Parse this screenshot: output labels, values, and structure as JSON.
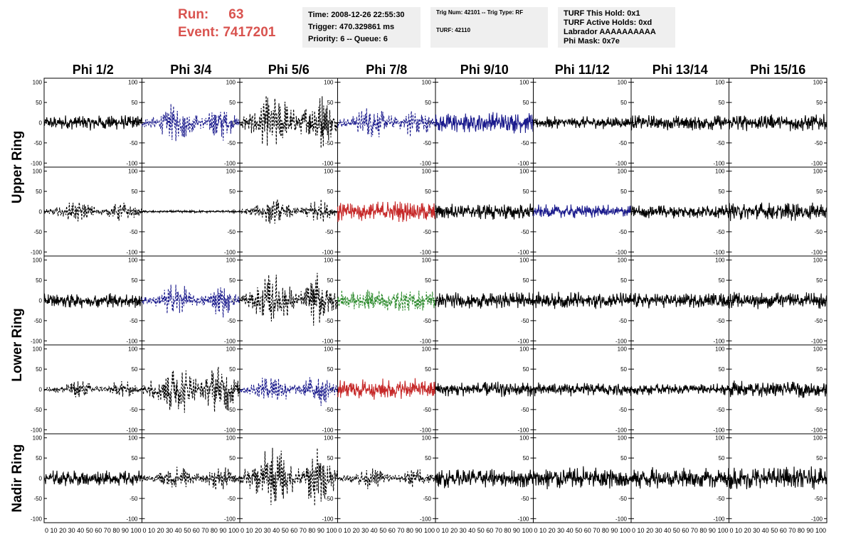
{
  "header": {
    "run_label": "Run:",
    "run_value": "63",
    "event_label": "Event:",
    "event_value": "7417201",
    "time": "Time: 2008-12-26 22:55:30",
    "trigger": "Trigger: 470.329861 ms",
    "priority": "Priority: 6 -- Queue: 6",
    "trig_num": "Trig Num: 42101 -- Trig Type: RF",
    "turf": "TURF: 42110",
    "turf_this_hold": "TURF This Hold: 0x1",
    "turf_active_holds": "TURF Active Holds: 0xd",
    "labrador": "Labrador AAAAAAAAAA",
    "phi_mask": "Phi Mask: 0x7e"
  },
  "colors": {
    "run_text": "#d9534f",
    "black_trace": "#000000",
    "blue_trace": "#1a1a8c",
    "red_trace": "#c62828",
    "green_trace": "#2e8b2e"
  },
  "chart_data": {
    "type": "line",
    "columns": [
      "Phi 1/2",
      "Phi 3/4",
      "Phi 5/6",
      "Phi 7/8",
      "Phi 9/10",
      "Phi 11/12",
      "Phi 13/14",
      "Phi 15/16"
    ],
    "rows": [
      "Upper Ring",
      "Lower Ring",
      "Nadir Ring"
    ],
    "xlim": [
      0,
      100
    ],
    "ylim": [
      -110,
      110
    ],
    "y_ticks": [
      -100,
      -50,
      0,
      50,
      100
    ],
    "x_tick_labels": "0 10 20 30 40 50 60 70 80 90 100",
    "grid": false,
    "panels": [
      [
        {
          "color": "black",
          "style": "solid",
          "amp": 20,
          "shape": "flat"
        },
        {
          "color": "blue",
          "style": "dashed",
          "amp": 45,
          "shape": "two"
        },
        {
          "color": "black",
          "style": "dashed",
          "amp": 75,
          "shape": "two"
        },
        {
          "color": "blue",
          "style": "dashed",
          "amp": 40,
          "shape": "two"
        },
        {
          "color": "blue",
          "style": "solid",
          "amp": 28,
          "shape": "flat"
        },
        {
          "color": "black",
          "style": "solid",
          "amp": 16,
          "shape": "flat"
        },
        {
          "color": "black",
          "style": "solid",
          "amp": 20,
          "shape": "flat"
        },
        {
          "color": "black",
          "style": "solid",
          "amp": 22,
          "shape": "flat"
        }
      ],
      [
        {
          "color": "black",
          "style": "dashed",
          "amp": 25,
          "shape": "two"
        },
        {
          "color": "black",
          "style": "solid",
          "amp": 3,
          "shape": "flat"
        },
        {
          "color": "black",
          "style": "dashed",
          "amp": 30,
          "shape": "two"
        },
        {
          "color": "red",
          "style": "solid",
          "amp": 28,
          "shape": "flat"
        },
        {
          "color": "black",
          "style": "solid",
          "amp": 22,
          "shape": "flat"
        },
        {
          "color": "blue",
          "style": "solid",
          "amp": 18,
          "shape": "flat"
        },
        {
          "color": "black",
          "style": "solid",
          "amp": 18,
          "shape": "flat"
        },
        {
          "color": "black",
          "style": "solid",
          "amp": 25,
          "shape": "flat"
        }
      ],
      [
        {
          "color": "black",
          "style": "solid",
          "amp": 20,
          "shape": "flat"
        },
        {
          "color": "blue",
          "style": "dashed",
          "amp": 40,
          "shape": "two"
        },
        {
          "color": "black",
          "style": "dashed",
          "amp": 65,
          "shape": "two"
        },
        {
          "color": "green",
          "style": "dashed",
          "amp": 28,
          "shape": "flat"
        },
        {
          "color": "black",
          "style": "solid",
          "amp": 22,
          "shape": "flat"
        },
        {
          "color": "black",
          "style": "solid",
          "amp": 22,
          "shape": "flat"
        },
        {
          "color": "black",
          "style": "solid",
          "amp": 20,
          "shape": "flat"
        },
        {
          "color": "black",
          "style": "solid",
          "amp": 22,
          "shape": "flat"
        }
      ],
      [
        {
          "color": "black",
          "style": "dashed",
          "amp": 22,
          "shape": "two"
        },
        {
          "color": "black",
          "style": "dashed",
          "amp": 70,
          "shape": "two"
        },
        {
          "color": "blue",
          "style": "dashed",
          "amp": 40,
          "shape": "two"
        },
        {
          "color": "red",
          "style": "solid",
          "amp": 28,
          "shape": "flat"
        },
        {
          "color": "black",
          "style": "solid",
          "amp": 20,
          "shape": "flat"
        },
        {
          "color": "black",
          "style": "solid",
          "amp": 18,
          "shape": "flat"
        },
        {
          "color": "black",
          "style": "solid",
          "amp": 15,
          "shape": "flat"
        },
        {
          "color": "black",
          "style": "solid",
          "amp": 22,
          "shape": "flat"
        }
      ],
      [
        {
          "color": "black",
          "style": "solid",
          "amp": 20,
          "shape": "flat"
        },
        {
          "color": "black",
          "style": "dashed",
          "amp": 30,
          "shape": "two"
        },
        {
          "color": "black",
          "style": "dashed",
          "amp": 75,
          "shape": "two"
        },
        {
          "color": "black",
          "style": "dashed",
          "amp": 25,
          "shape": "two"
        },
        {
          "color": "black",
          "style": "solid",
          "amp": 25,
          "shape": "flat"
        },
        {
          "color": "black",
          "style": "solid",
          "amp": 32,
          "shape": "flat"
        },
        {
          "color": "black",
          "style": "solid",
          "amp": 28,
          "shape": "flat"
        },
        {
          "color": "black",
          "style": "solid",
          "amp": 30,
          "shape": "flat"
        }
      ]
    ]
  }
}
